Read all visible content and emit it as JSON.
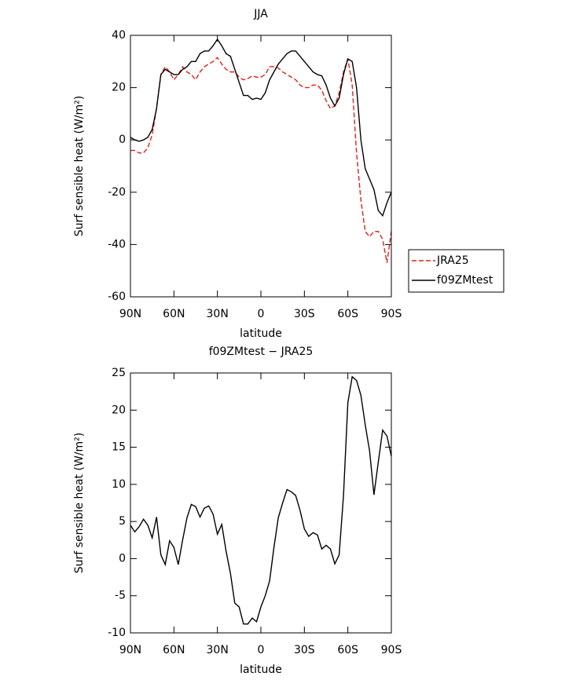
{
  "chart_data": [
    {
      "type": "line",
      "title": "JJA",
      "xlabel": "latitude",
      "ylabel": "Surf sensible heat (W/m²)",
      "x": [
        90,
        87,
        84,
        81,
        78,
        75,
        72,
        69,
        66,
        63,
        60,
        57,
        54,
        51,
        48,
        45,
        42,
        39,
        36,
        33,
        30,
        27,
        24,
        21,
        18,
        15,
        12,
        9,
        6,
        3,
        0,
        -3,
        -6,
        -9,
        -12,
        -15,
        -18,
        -21,
        -24,
        -27,
        -30,
        -33,
        -36,
        -39,
        -42,
        -45,
        -48,
        -51,
        -54,
        -57,
        -60,
        -63,
        -66,
        -69,
        -72,
        -75,
        -78,
        -81,
        -84,
        -87,
        -90
      ],
      "xlim": [
        90,
        -90
      ],
      "xticks": [
        {
          "value": 90,
          "label": "90N"
        },
        {
          "value": 60,
          "label": "60N"
        },
        {
          "value": 30,
          "label": "30N"
        },
        0,
        {
          "value": -30,
          "label": "30S"
        },
        {
          "value": -60,
          "label": "60S"
        },
        {
          "value": -90,
          "label": "90S"
        }
      ],
      "ylim": [
        -60,
        40
      ],
      "yticks": [
        -60,
        -40,
        -20,
        0,
        20,
        40
      ],
      "legend": "right",
      "series": [
        {
          "name": "JRA25",
          "color": "#e0201b",
          "dash": true,
          "values": [
            -4,
            -4,
            -5,
            -5,
            -3,
            2,
            12,
            25,
            28,
            26,
            23,
            25,
            28,
            26,
            25,
            23,
            26,
            28,
            29,
            30,
            31.5,
            29,
            27,
            26,
            26,
            24,
            23,
            23.5,
            24.5,
            24,
            24,
            25,
            28,
            28,
            27.5,
            26,
            25,
            24,
            23,
            21,
            20,
            20,
            21,
            21,
            19,
            15,
            12,
            13,
            18,
            26,
            31,
            21,
            -5,
            -23,
            -35,
            -37,
            -35,
            -35,
            -38,
            -47,
            -35
          ]
        },
        {
          "name": "f09ZMtest",
          "color": "#000000",
          "dash": false,
          "values": [
            1,
            0,
            -0.5,
            0,
            1,
            4,
            12,
            25,
            27,
            26,
            25,
            25,
            27,
            28,
            30,
            30,
            33,
            34,
            34,
            36,
            38.5,
            36,
            33,
            32,
            27,
            22,
            17,
            17,
            15.5,
            16,
            15.5,
            18,
            23,
            26,
            29,
            31,
            33,
            34,
            34,
            32,
            30,
            28,
            26,
            25,
            24.5,
            21,
            16,
            13,
            16,
            25,
            31,
            30,
            20,
            0,
            -11,
            -15,
            -19,
            -27,
            -29,
            -24,
            -20
          ]
        }
      ]
    },
    {
      "type": "line",
      "title": "f09ZMtest − JRA25",
      "xlabel": "latitude",
      "ylabel": "Surf sensible heat (W/m²)",
      "x": [
        90,
        87,
        84,
        81,
        78,
        75,
        72,
        69,
        66,
        63,
        60,
        57,
        54,
        51,
        48,
        45,
        42,
        39,
        36,
        33,
        30,
        27,
        24,
        21,
        18,
        15,
        12,
        9,
        6,
        3,
        0,
        -3,
        -6,
        -9,
        -12,
        -15,
        -18,
        -21,
        -24,
        -27,
        -30,
        -33,
        -36,
        -39,
        -42,
        -45,
        -48,
        -51,
        -54,
        -57,
        -60,
        -63,
        -66,
        -69,
        -72,
        -75,
        -78,
        -81,
        -84,
        -87,
        -90
      ],
      "xlim": [
        90,
        -90
      ],
      "xticks": [
        {
          "value": 90,
          "label": "90N"
        },
        {
          "value": 60,
          "label": "60N"
        },
        {
          "value": 30,
          "label": "30N"
        },
        0,
        {
          "value": -30,
          "label": "30S"
        },
        {
          "value": -60,
          "label": "60S"
        },
        {
          "value": -90,
          "label": "90S"
        }
      ],
      "ylim": [
        -10,
        25
      ],
      "yticks": [
        -10,
        -5,
        0,
        5,
        10,
        15,
        20,
        25
      ],
      "series": [
        {
          "color": "#000000",
          "dash": false,
          "values": [
            4.5,
            3.6,
            4.3,
            5.3,
            4.5,
            2.8,
            5.6,
            0.5,
            -0.8,
            2.4,
            1.5,
            -0.8,
            2.5,
            5.5,
            7.3,
            7,
            5.6,
            6.8,
            7.1,
            6,
            3.3,
            4.6,
            1,
            -2,
            -6,
            -6.5,
            -8.8,
            -8.8,
            -8,
            -8.5,
            -6.5,
            -5,
            -3,
            1.5,
            5.5,
            7.5,
            9.3,
            9,
            8.5,
            6.5,
            4,
            3,
            3.5,
            3.2,
            1.3,
            1.8,
            1.3,
            -0.7,
            0.5,
            8.5,
            21,
            24.5,
            24,
            22,
            18,
            14.5,
            8.6,
            13,
            17.3,
            16.5,
            13.8
          ]
        }
      ]
    }
  ]
}
